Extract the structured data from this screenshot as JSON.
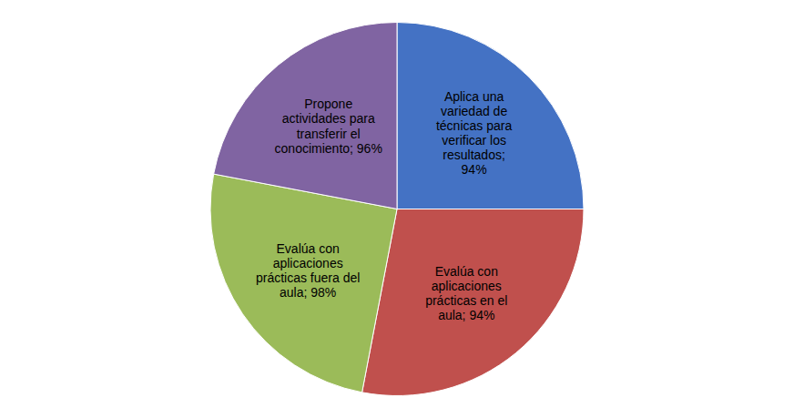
{
  "chart_data": {
    "type": "pie",
    "categories": [
      "Aplica una\nvariedad de\ntécnicas para\nverificar los\nresultados;\n94%",
      "Evalúa con\naplicaciones\nprácticas en el\naula; 94%",
      "Evalúa con\naplicaciones\nprácticas fuera del\naula; 98%",
      "Propone\nactividades para\ntransferir el\nconocimiento; 96%"
    ],
    "values": [
      25,
      28,
      25,
      22
    ],
    "colors": [
      "#4472C4",
      "#C0504D",
      "#9BBB59",
      "#8064A2"
    ]
  }
}
